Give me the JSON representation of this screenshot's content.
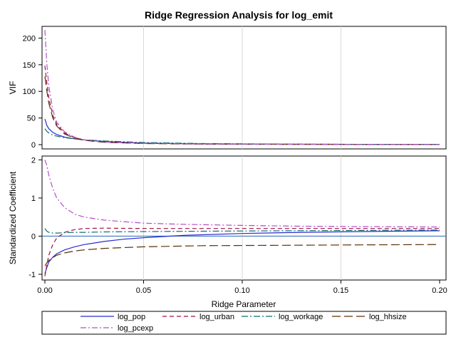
{
  "title": "Ridge Regression Analysis for log_emit",
  "colors": {
    "log_pop": "#2a2ad0",
    "log_urban": "#a0104a",
    "log_workage": "#0a7070",
    "log_hhsize": "#5a3008",
    "log_pcexp": "#b050c8",
    "reference_line": "#2a64b8",
    "grid": "#d8d8d8"
  },
  "chart_data": [
    {
      "type": "line",
      "panel": "top",
      "ylabel": "VIF",
      "xlim": [
        0,
        0.2
      ],
      "ylim": [
        -8,
        222
      ],
      "yticks": [
        0,
        50,
        100,
        150,
        200
      ],
      "grid_x": [
        0.05,
        0.1,
        0.15
      ],
      "series": [
        {
          "name": "log_pop",
          "dash": "",
          "x": [
            0,
            0.001,
            0.002,
            0.004,
            0.006,
            0.01,
            0.015,
            0.02,
            0.03,
            0.05,
            0.08,
            0.12,
            0.16,
            0.2
          ],
          "values": [
            48,
            36,
            30,
            23,
            19,
            14,
            11,
            9,
            6,
            3,
            1.5,
            1,
            0.6,
            0.4
          ]
        },
        {
          "name": "log_urban",
          "dash": "6,4",
          "x": [
            0,
            0.001,
            0.002,
            0.004,
            0.006,
            0.01,
            0.015,
            0.02,
            0.03,
            0.05,
            0.08,
            0.12,
            0.16,
            0.2
          ],
          "values": [
            148,
            115,
            88,
            55,
            38,
            22,
            13,
            9,
            5,
            2.5,
            1.2,
            0.8,
            0.5,
            0.3
          ]
        },
        {
          "name": "log_workage",
          "dash": "9,3,2,3",
          "x": [
            0,
            0.001,
            0.002,
            0.004,
            0.006,
            0.01,
            0.015,
            0.02,
            0.03,
            0.05,
            0.08,
            0.12,
            0.16,
            0.2
          ],
          "values": [
            30,
            25,
            22,
            18,
            16,
            13,
            11,
            9,
            7,
            4,
            2,
            1,
            0.6,
            0.4
          ]
        },
        {
          "name": "log_hhsize",
          "dash": "12,5",
          "x": [
            0,
            0.001,
            0.002,
            0.004,
            0.006,
            0.01,
            0.015,
            0.02,
            0.03,
            0.05,
            0.08,
            0.12,
            0.16,
            0.2
          ],
          "values": [
            128,
            100,
            78,
            50,
            35,
            20,
            12,
            8,
            4.5,
            2,
            1,
            0.6,
            0.4,
            0.3
          ]
        },
        {
          "name": "log_pcexp",
          "dash": "8,3,2,3",
          "x": [
            0,
            0.001,
            0.002,
            0.004,
            0.006,
            0.01,
            0.015,
            0.02,
            0.03,
            0.05,
            0.08,
            0.12,
            0.16,
            0.2
          ],
          "values": [
            215,
            150,
            110,
            65,
            42,
            24,
            14,
            9,
            5,
            2.5,
            1.2,
            0.7,
            0.4,
            0.3
          ]
        }
      ]
    },
    {
      "type": "line",
      "panel": "bottom",
      "ylabel": "Standardized Coefficient",
      "xlabel": "Ridge Parameter",
      "xlim": [
        -0.001,
        0.2
      ],
      "ylim": [
        -1.15,
        2.1
      ],
      "yticks": [
        -1,
        0,
        1,
        2
      ],
      "xticks": [
        0.0,
        0.05,
        0.1,
        0.15,
        0.2
      ],
      "xtick_labels": [
        "0.00",
        "0.05",
        "0.10",
        "0.15",
        "0.20"
      ],
      "grid_x": [
        0.05,
        0.1,
        0.15
      ],
      "reference_y": 0,
      "series": [
        {
          "name": "log_pop",
          "dash": "",
          "x": [
            0,
            0.001,
            0.002,
            0.004,
            0.006,
            0.01,
            0.015,
            0.02,
            0.03,
            0.04,
            0.05,
            0.07,
            0.1,
            0.13,
            0.16,
            0.2
          ],
          "values": [
            -0.98,
            -0.82,
            -0.68,
            -0.55,
            -0.46,
            -0.36,
            -0.28,
            -0.22,
            -0.14,
            -0.08,
            -0.04,
            0.02,
            0.07,
            0.1,
            0.12,
            0.14
          ]
        },
        {
          "name": "log_urban",
          "dash": "6,4",
          "x": [
            0,
            0.001,
            0.002,
            0.004,
            0.006,
            0.01,
            0.015,
            0.02,
            0.03,
            0.05,
            0.08,
            0.12,
            0.16,
            0.2
          ],
          "values": [
            -1.05,
            -0.75,
            -0.5,
            -0.22,
            -0.05,
            0.1,
            0.17,
            0.2,
            0.21,
            0.2,
            0.2,
            0.2,
            0.2,
            0.2
          ]
        },
        {
          "name": "log_workage",
          "dash": "9,3,2,3",
          "x": [
            0,
            0.001,
            0.002,
            0.004,
            0.006,
            0.01,
            0.015,
            0.02,
            0.03,
            0.05,
            0.08,
            0.12,
            0.16,
            0.2
          ],
          "values": [
            0.2,
            0.13,
            0.1,
            0.08,
            0.08,
            0.09,
            0.1,
            0.1,
            0.11,
            0.12,
            0.13,
            0.14,
            0.15,
            0.16
          ]
        },
        {
          "name": "log_hhsize",
          "dash": "12,5",
          "x": [
            0,
            0.001,
            0.002,
            0.004,
            0.006,
            0.01,
            0.015,
            0.02,
            0.03,
            0.05,
            0.08,
            0.12,
            0.16,
            0.2
          ],
          "values": [
            -0.78,
            -0.7,
            -0.64,
            -0.56,
            -0.5,
            -0.44,
            -0.39,
            -0.36,
            -0.32,
            -0.28,
            -0.25,
            -0.24,
            -0.23,
            -0.22
          ]
        },
        {
          "name": "log_pcexp",
          "dash": "8,3,2,3",
          "x": [
            0,
            0.001,
            0.002,
            0.004,
            0.006,
            0.01,
            0.015,
            0.02,
            0.03,
            0.04,
            0.05,
            0.07,
            0.1,
            0.13,
            0.16,
            0.2
          ],
          "values": [
            2.0,
            1.85,
            1.6,
            1.25,
            1.0,
            0.75,
            0.58,
            0.5,
            0.42,
            0.38,
            0.34,
            0.31,
            0.28,
            0.26,
            0.25,
            0.24
          ]
        }
      ]
    }
  ],
  "legend": {
    "placement": "bottom",
    "items": [
      "log_pop",
      "log_urban",
      "log_workage",
      "log_hhsize",
      "log_pcexp"
    ]
  }
}
